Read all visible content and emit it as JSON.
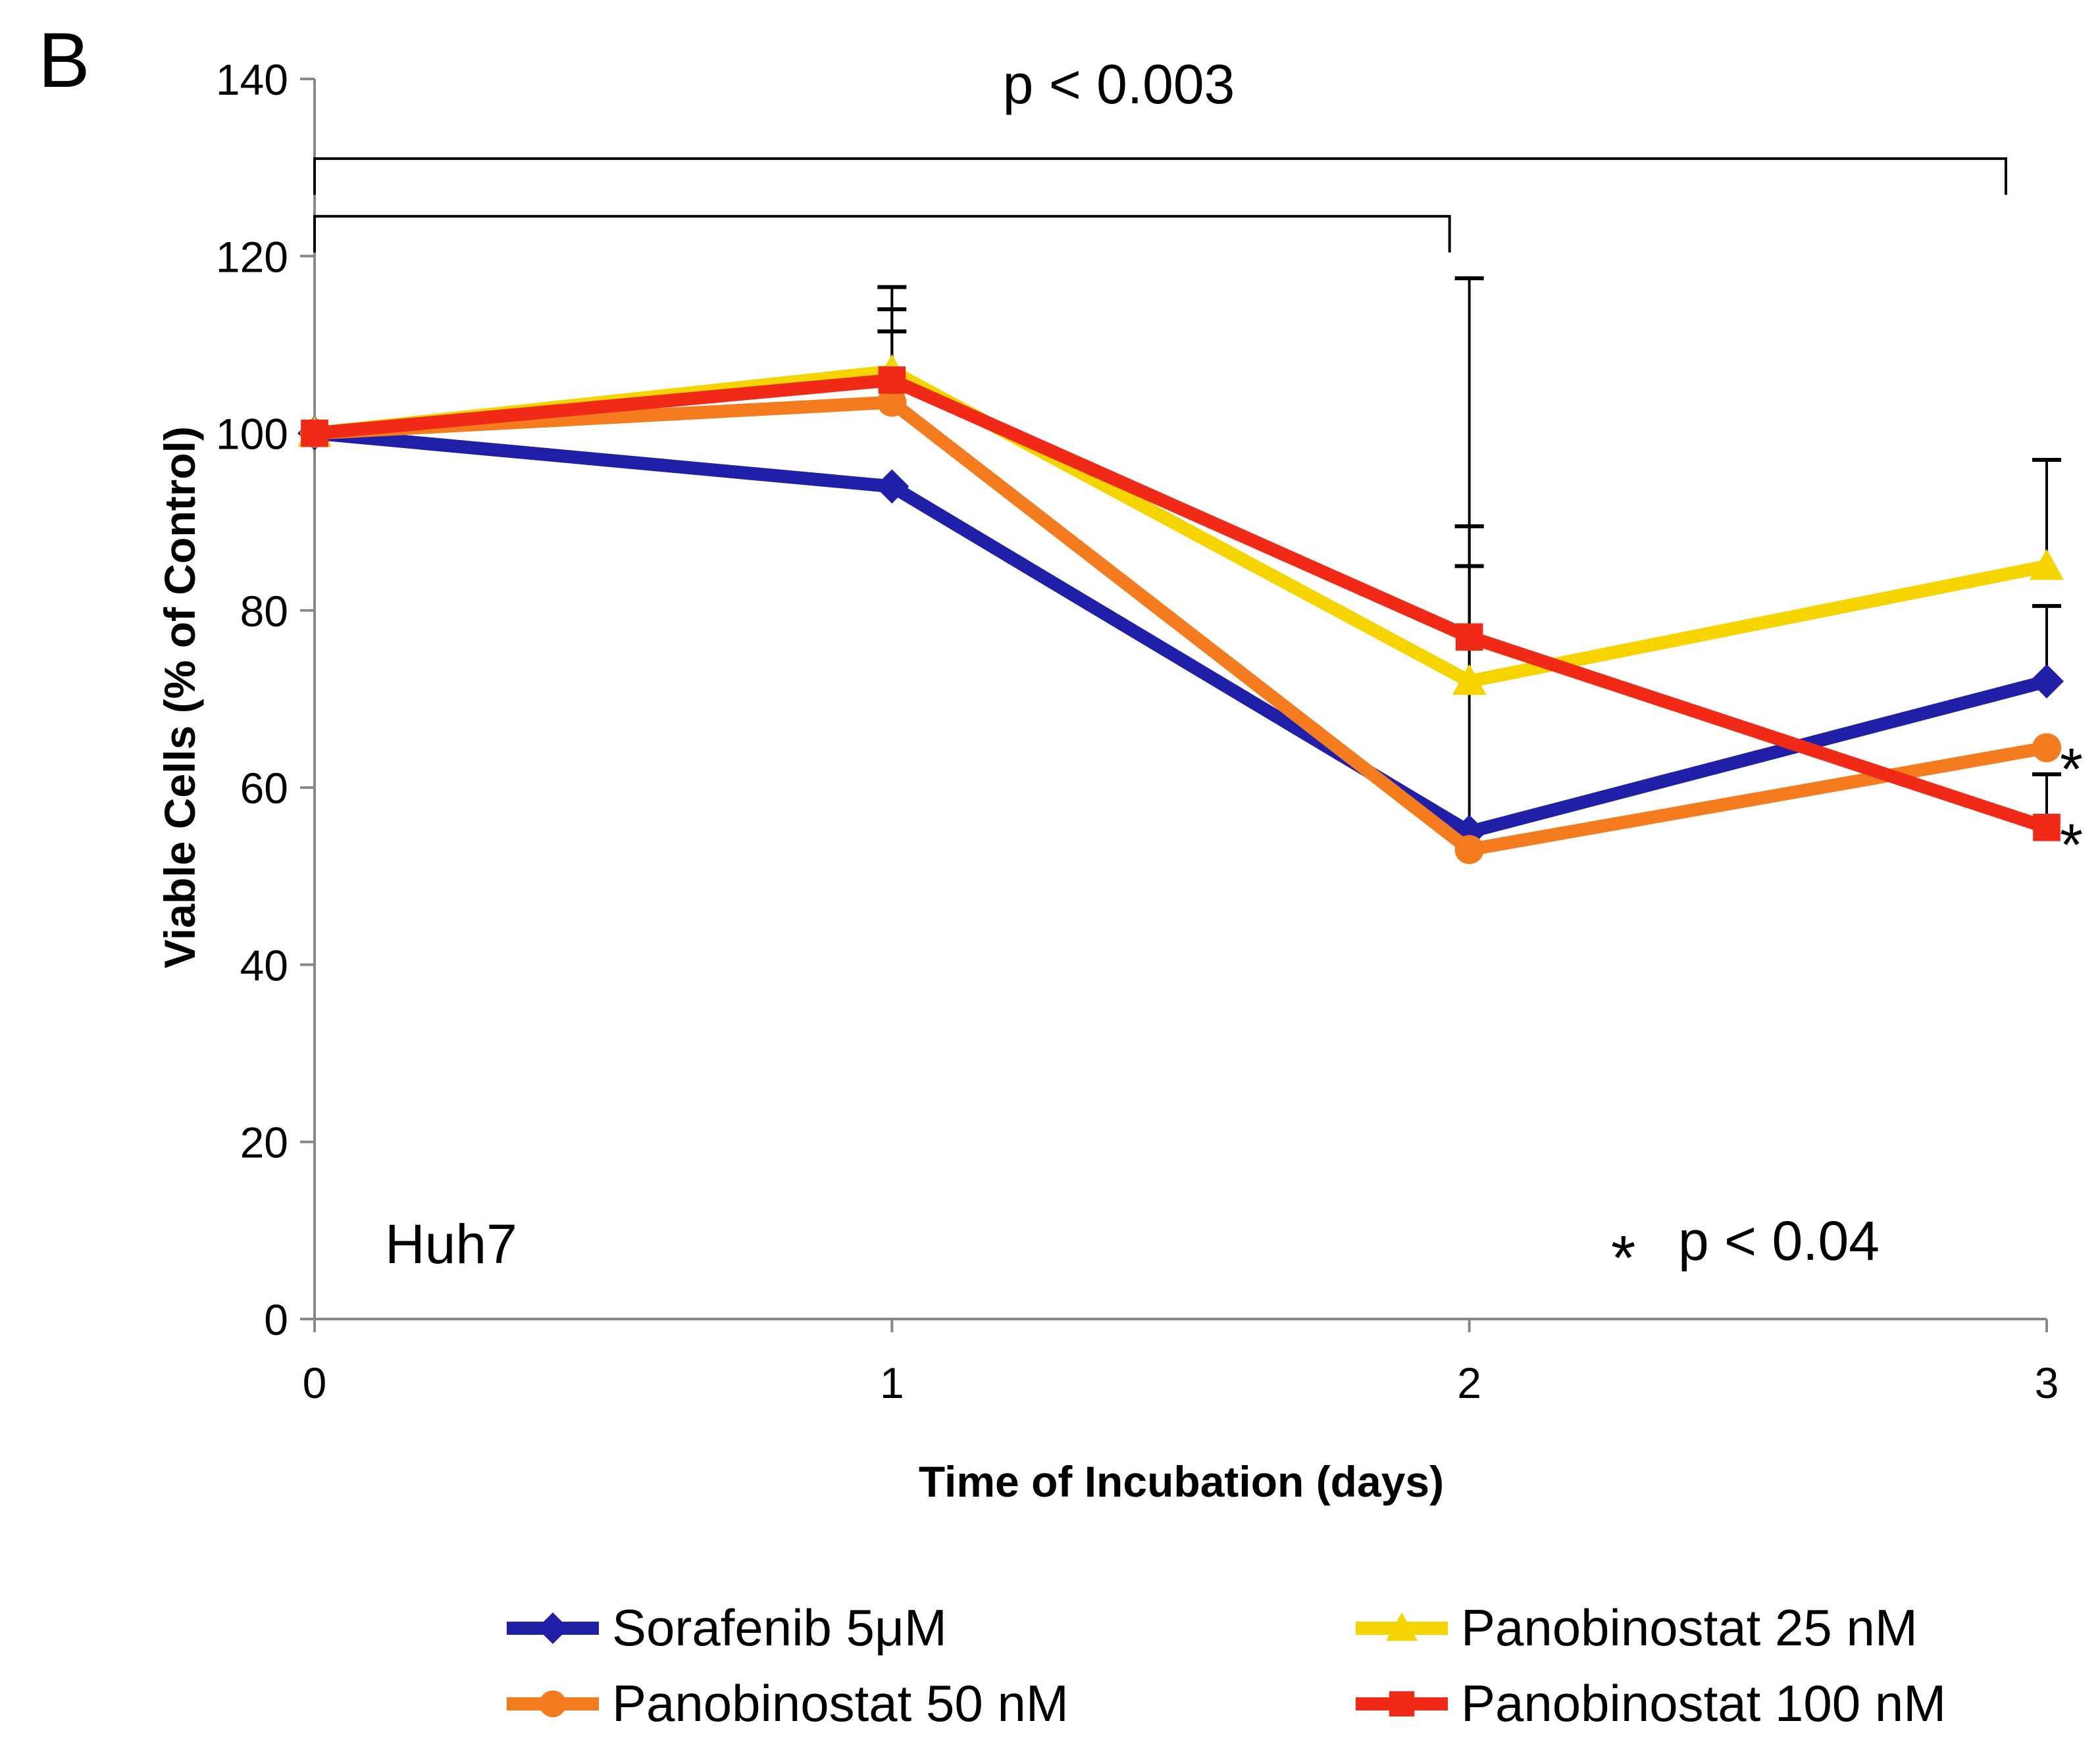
{
  "panel_label": "B",
  "chart_data": {
    "type": "line",
    "xlabel": "Time of Incubation (days)",
    "ylabel": "Viable Cells (% of Control)",
    "x": [
      0,
      1,
      2,
      3
    ],
    "xlim": [
      0,
      3
    ],
    "ylim": [
      0,
      140
    ],
    "yticks": [
      0,
      20,
      40,
      60,
      80,
      100,
      120,
      140
    ],
    "xticks": [
      0,
      1,
      2,
      3
    ],
    "grid": false,
    "legend_position": "bottom",
    "series": [
      {
        "name": "Sorafenib 5μM",
        "color": "#1f1fa8",
        "marker": "diamond",
        "values": [
          100,
          94,
          55,
          72
        ],
        "error_upper": [
          null,
          null,
          null,
          80.5
        ]
      },
      {
        "name": "Panobinostat 25 nM",
        "color": "#f5d400",
        "marker": "triangle",
        "values": [
          100,
          107,
          72,
          85
        ],
        "error_upper": [
          null,
          116.5,
          85,
          97
        ]
      },
      {
        "name": "Panobinostat 50 nM",
        "color": "#f47b1e",
        "marker": "circle",
        "values": [
          100,
          103.5,
          53,
          64.5
        ],
        "error_upper": [
          null,
          111.5,
          89.5,
          null
        ]
      },
      {
        "name": "Panobinostat 100 nM",
        "color": "#f02a16",
        "marker": "square",
        "values": [
          100,
          106,
          77,
          55.5
        ],
        "error_upper": [
          null,
          114,
          117.5,
          61.5
        ]
      }
    ],
    "annotations": {
      "cell_line": "Huh7",
      "p_top": "p < 0.003",
      "p_star_symbol": "*",
      "p_bottom": "p < 0.04",
      "star_day3_50nM": "*",
      "star_day3_100nM": "*"
    },
    "brackets": [
      {
        "from": 0,
        "to": 3,
        "level": 131
      },
      {
        "from": 0,
        "to": 2,
        "level": 124.5
      }
    ]
  }
}
